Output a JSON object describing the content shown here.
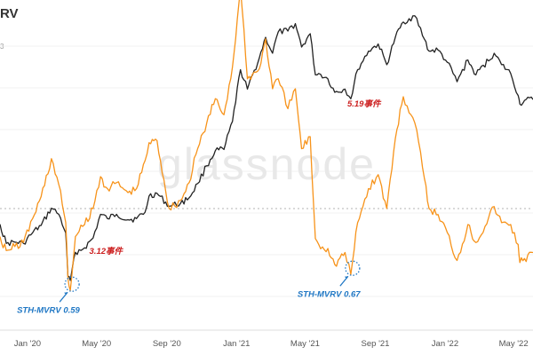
{
  "header": {
    "title_fragment": "RV",
    "subtitle_fragment": "3"
  },
  "watermark": "glassnode",
  "chart_data": {
    "type": "line",
    "x_start": "2019-11-14",
    "x_end": "2022-06-04",
    "xticks": [
      {
        "date": "2020-01-01",
        "label": "Jan '20"
      },
      {
        "date": "2020-05-01",
        "label": "May '20"
      },
      {
        "date": "2020-09-01",
        "label": "Sep '20"
      },
      {
        "date": "2021-01-01",
        "label": "Jan '21"
      },
      {
        "date": "2021-05-01",
        "label": "May '21"
      },
      {
        "date": "2021-09-01",
        "label": "Sep '21"
      },
      {
        "date": "2022-01-01",
        "label": "Jan '22"
      },
      {
        "date": "2022-05-01",
        "label": "May '22"
      }
    ],
    "reference_line": {
      "value": 1.0,
      "style": "dashed"
    },
    "series": [
      {
        "name": "",
        "color": "#222222",
        "points": [
          [
            "2019-11-14",
            8.7
          ],
          [
            "2019-11-25",
            7.2
          ],
          [
            "2019-12-10",
            7.3
          ],
          [
            "2019-12-25",
            7.2
          ],
          [
            "2020-01-10",
            8.0
          ],
          [
            "2020-01-25",
            8.6
          ],
          [
            "2020-02-12",
            10.2
          ],
          [
            "2020-02-25",
            9.6
          ],
          [
            "2020-03-08",
            8.0
          ],
          [
            "2020-03-12",
            5.2
          ],
          [
            "2020-03-16",
            5.0
          ],
          [
            "2020-03-25",
            6.6
          ],
          [
            "2020-04-10",
            6.9
          ],
          [
            "2020-04-25",
            7.6
          ],
          [
            "2020-05-08",
            9.6
          ],
          [
            "2020-05-20",
            9.2
          ],
          [
            "2020-06-05",
            9.6
          ],
          [
            "2020-06-25",
            9.1
          ],
          [
            "2020-07-10",
            9.2
          ],
          [
            "2020-07-25",
            9.8
          ],
          [
            "2020-08-01",
            11.5
          ],
          [
            "2020-08-15",
            11.8
          ],
          [
            "2020-09-05",
            10.4
          ],
          [
            "2020-09-25",
            10.7
          ],
          [
            "2020-10-10",
            11.3
          ],
          [
            "2020-10-25",
            13.0
          ],
          [
            "2020-11-10",
            15.5
          ],
          [
            "2020-11-25",
            18.0
          ],
          [
            "2020-12-10",
            18.2
          ],
          [
            "2020-12-25",
            24.0
          ],
          [
            "2021-01-08",
            40.0
          ],
          [
            "2021-01-20",
            33.0
          ],
          [
            "2021-02-10",
            45.0
          ],
          [
            "2021-02-21",
            55.0
          ],
          [
            "2021-03-05",
            47.0
          ],
          [
            "2021-03-15",
            58.0
          ],
          [
            "2021-04-01",
            58.5
          ],
          [
            "2021-04-14",
            63.0
          ],
          [
            "2021-04-25",
            50.0
          ],
          [
            "2021-05-10",
            57.0
          ],
          [
            "2021-05-19",
            38.0
          ],
          [
            "2021-05-25",
            38.5
          ],
          [
            "2021-06-10",
            36.5
          ],
          [
            "2021-06-22",
            32.0
          ],
          [
            "2021-07-10",
            33.0
          ],
          [
            "2021-07-20",
            30.0
          ],
          [
            "2021-08-01",
            40.0
          ],
          [
            "2021-08-20",
            48.0
          ],
          [
            "2021-09-06",
            51.5
          ],
          [
            "2021-09-21",
            42.0
          ],
          [
            "2021-10-06",
            55.0
          ],
          [
            "2021-10-20",
            64.0
          ],
          [
            "2021-11-09",
            68.0
          ],
          [
            "2021-11-26",
            54.0
          ],
          [
            "2021-12-04",
            48.0
          ],
          [
            "2021-12-20",
            48.5
          ],
          [
            "2022-01-05",
            43.0
          ],
          [
            "2022-01-22",
            35.5
          ],
          [
            "2022-02-10",
            44.0
          ],
          [
            "2022-02-24",
            38.0
          ],
          [
            "2022-03-28",
            47.0
          ],
          [
            "2022-04-10",
            42.0
          ],
          [
            "2022-04-26",
            38.5
          ],
          [
            "2022-05-09",
            31.0
          ],
          [
            "2022-05-12",
            28.5
          ],
          [
            "2022-05-20",
            29.5
          ],
          [
            "2022-06-04",
            29.8
          ]
        ]
      },
      {
        "name": "",
        "color": "#f7931a",
        "points": [
          [
            "2019-11-14",
            0.86
          ],
          [
            "2019-11-25",
            0.79
          ],
          [
            "2019-12-10",
            0.81
          ],
          [
            "2019-12-25",
            0.83
          ],
          [
            "2020-01-10",
            0.95
          ],
          [
            "2020-01-25",
            1.06
          ],
          [
            "2020-02-12",
            1.25
          ],
          [
            "2020-02-25",
            1.12
          ],
          [
            "2020-03-08",
            0.93
          ],
          [
            "2020-03-12",
            0.65
          ],
          [
            "2020-03-16",
            0.59
          ],
          [
            "2020-03-25",
            0.86
          ],
          [
            "2020-04-10",
            0.92
          ],
          [
            "2020-04-25",
            1.0
          ],
          [
            "2020-05-08",
            1.16
          ],
          [
            "2020-05-20",
            1.1
          ],
          [
            "2020-06-05",
            1.13
          ],
          [
            "2020-06-25",
            1.08
          ],
          [
            "2020-07-10",
            1.1
          ],
          [
            "2020-07-25",
            1.24
          ],
          [
            "2020-08-01",
            1.33
          ],
          [
            "2020-08-15",
            1.34
          ],
          [
            "2020-09-05",
            1.0
          ],
          [
            "2020-09-25",
            1.04
          ],
          [
            "2020-10-10",
            1.13
          ],
          [
            "2020-10-25",
            1.3
          ],
          [
            "2020-11-10",
            1.43
          ],
          [
            "2020-11-25",
            1.55
          ],
          [
            "2020-12-10",
            1.47
          ],
          [
            "2020-12-25",
            1.71
          ],
          [
            "2021-01-08",
            2.1
          ],
          [
            "2021-01-20",
            1.65
          ],
          [
            "2021-02-10",
            1.7
          ],
          [
            "2021-02-21",
            1.85
          ],
          [
            "2021-03-05",
            1.6
          ],
          [
            "2021-03-15",
            1.65
          ],
          [
            "2021-04-01",
            1.5
          ],
          [
            "2021-04-14",
            1.6
          ],
          [
            "2021-04-25",
            1.3
          ],
          [
            "2021-05-10",
            1.36
          ],
          [
            "2021-05-19",
            0.85
          ],
          [
            "2021-05-25",
            0.82
          ],
          [
            "2021-06-10",
            0.8
          ],
          [
            "2021-06-22",
            0.72
          ],
          [
            "2021-07-10",
            0.78
          ],
          [
            "2021-07-20",
            0.67
          ],
          [
            "2021-08-01",
            0.93
          ],
          [
            "2021-08-20",
            1.1
          ],
          [
            "2021-09-06",
            1.17
          ],
          [
            "2021-09-21",
            1.0
          ],
          [
            "2021-10-06",
            1.35
          ],
          [
            "2021-10-20",
            1.56
          ],
          [
            "2021-11-09",
            1.43
          ],
          [
            "2021-11-26",
            1.15
          ],
          [
            "2021-12-04",
            1.0
          ],
          [
            "2021-12-20",
            0.97
          ],
          [
            "2022-01-05",
            0.88
          ],
          [
            "2022-01-22",
            0.74
          ],
          [
            "2022-02-10",
            0.92
          ],
          [
            "2022-02-24",
            0.83
          ],
          [
            "2022-03-28",
            1.01
          ],
          [
            "2022-04-10",
            0.93
          ],
          [
            "2022-04-26",
            0.92
          ],
          [
            "2022-05-09",
            0.82
          ],
          [
            "2022-05-12",
            0.73
          ],
          [
            "2022-05-20",
            0.75
          ],
          [
            "2022-06-04",
            0.78
          ]
        ]
      }
    ],
    "annotations": [
      {
        "text": "STH-MVRV 0.59",
        "date": "2020-03-16",
        "value": 0.59,
        "color": "#1f77c4",
        "kind": "circle-label"
      },
      {
        "text": "STH-MVRV 0.67",
        "date": "2021-07-20",
        "value": 0.67,
        "color": "#1f77c4",
        "kind": "circle-label"
      },
      {
        "text": "3.12事件",
        "date": "2020-03-12",
        "color": "#cc1f1f",
        "kind": "event"
      },
      {
        "text": "5.19事件",
        "date": "2021-05-19",
        "color": "#cc1f1f",
        "kind": "event"
      }
    ]
  }
}
